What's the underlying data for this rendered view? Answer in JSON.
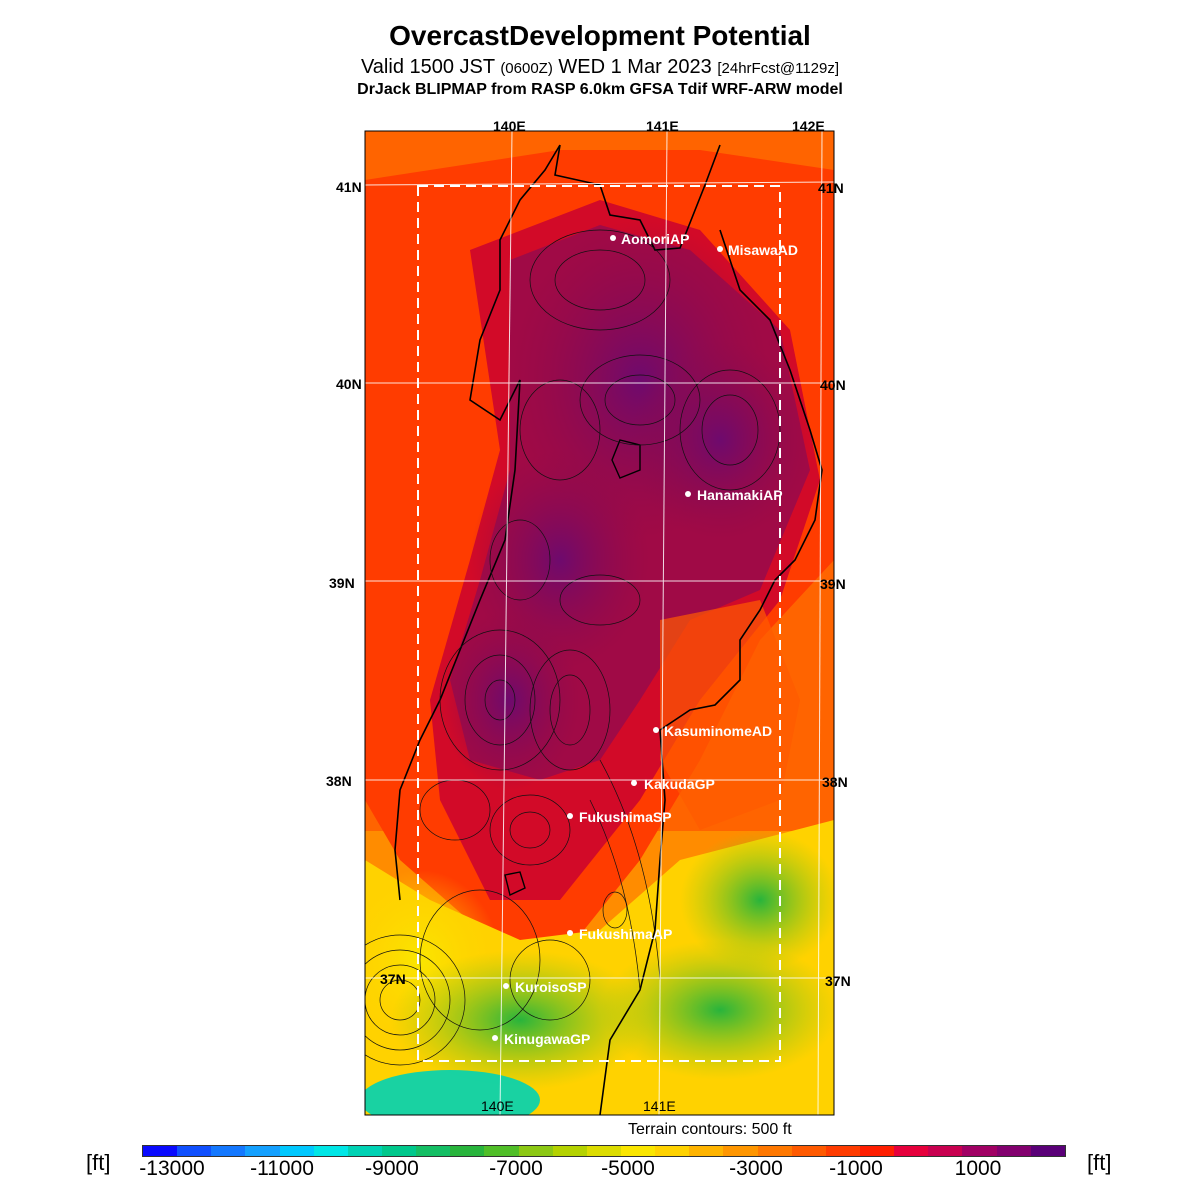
{
  "title": "OvercastDevelopment Potential",
  "subtitle": {
    "part1": "Valid 1500 JST ",
    "part2": "(0600Z)",
    "part3": " WED 1 Mar 2023 ",
    "part4": "[24hrFcst@1129z]"
  },
  "model_line": "DrJack BLIPMAP from RASP 6.0km GFSA Tdif WRF-ARW model",
  "lon_labels_top": [
    "140E",
    "141E",
    "142E"
  ],
  "lon_labels_bottom": [
    "140E",
    "141E"
  ],
  "lat_labels_left": [
    "41N",
    "40N",
    "39N",
    "38N",
    "37N"
  ],
  "lat_labels_right": [
    "41N",
    "40N",
    "39N",
    "38N",
    "37N"
  ],
  "sites": [
    "AomoriAP",
    "MisawaAD",
    "HanamakiAP",
    "KasuminomeAD",
    "KakudaGP",
    "FukushimaSP",
    "FukushimaAP",
    "KuroisoSP",
    "KinugawaGP"
  ],
  "terrain_note": "Terrain contours: 500 ft",
  "colorbar": {
    "unit": "[ft]",
    "ticks": [
      "-13000",
      "-11000",
      "-9000",
      "-7000",
      "-5000",
      "-3000",
      "-1000",
      "1000"
    ],
    "colors": [
      "#0a0aff",
      "#1050ff",
      "#1478ff",
      "#14a0ff",
      "#00c8ff",
      "#00e6e6",
      "#00d2b4",
      "#00c88c",
      "#14be64",
      "#28b43c",
      "#50be28",
      "#8cc814",
      "#b4d200",
      "#dcdc00",
      "#fae600",
      "#ffd200",
      "#ffb400",
      "#ff9600",
      "#ff7800",
      "#ff5a00",
      "#ff3c00",
      "#ff1e00",
      "#e6003c",
      "#c80050",
      "#a00064",
      "#82006e",
      "#5a0078"
    ]
  }
}
